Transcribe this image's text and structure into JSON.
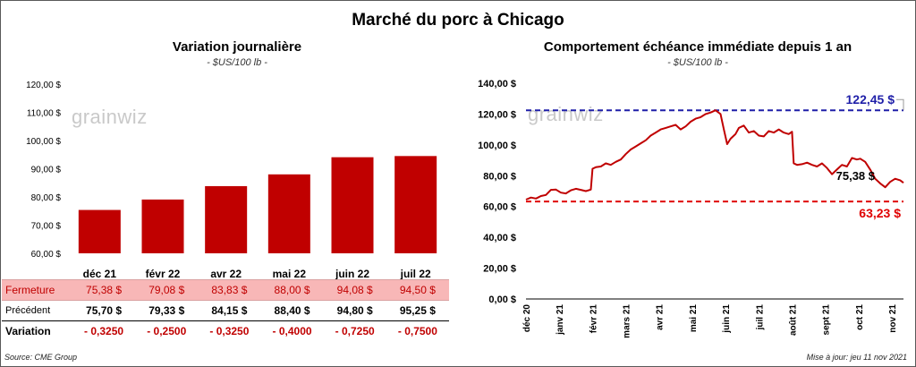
{
  "title": "Marché du porc à Chicago",
  "watermark": "grainwiz",
  "left_chart": {
    "title": "Variation journalière",
    "unit": "- $US/100 lb -"
  },
  "right_chart": {
    "title": "Comportement échéance immédiate depuis 1 an",
    "unit": "- $US/100 lb -"
  },
  "table": {
    "rows": [
      {
        "label": "Fermeture",
        "values": [
          "75,38 $",
          "79,08 $",
          "83,83 $",
          "88,00 $",
          "94,08 $",
          "94,50 $"
        ]
      },
      {
        "label": "Précédent",
        "values": [
          "75,70 $",
          "79,33 $",
          "84,15 $",
          "88,40 $",
          "94,80 $",
          "95,25 $"
        ]
      },
      {
        "label": "Variation",
        "values": [
          "- 0,3250",
          "- 0,2500",
          "- 0,3250",
          "- 0,4000",
          "- 0,7250",
          "- 0,7500"
        ]
      }
    ]
  },
  "footer": {
    "source": "Source: CME Group",
    "updated": "Mise à jour: jeu 11 nov 2021"
  },
  "colors": {
    "bar": "#c00000",
    "line": "#c00000",
    "high_line": "#1f1fa8",
    "low_line": "#e00000",
    "close_row_bg": "#f8b7b7"
  },
  "chart_data": [
    {
      "type": "bar",
      "title": "Variation journalière",
      "categories": [
        "déc 21",
        "févr 22",
        "avr 22",
        "mai 22",
        "juin 22",
        "juil 22"
      ],
      "values": [
        75.38,
        79.08,
        83.83,
        88.0,
        94.08,
        94.5
      ],
      "yticks": [
        "120,00 $",
        "110,00 $",
        "100,00 $",
        "90,00 $",
        "80,00 $",
        "70,00 $",
        "60,00 $"
      ],
      "ylim": [
        60,
        120
      ],
      "grid": false
    },
    {
      "type": "line",
      "title": "Comportement échéance immédiate depuis 1 an",
      "x_labels": [
        "déc 20",
        "janv 21",
        "févr 21",
        "mars 21",
        "avr 21",
        "mai 21",
        "juin 21",
        "juil 21",
        "août 21",
        "sept 21",
        "oct 21",
        "nov 21"
      ],
      "x_months": [
        0,
        1,
        2,
        3,
        4,
        5,
        6,
        7,
        8,
        9,
        10,
        11,
        11.35
      ],
      "series": [
        {
          "x": [
            0.0,
            0.15,
            0.3,
            0.45,
            0.6,
            0.75,
            0.9,
            1.05,
            1.2,
            1.35,
            1.5,
            1.65,
            1.8,
            1.95,
            2.0,
            2.1,
            2.25,
            2.4,
            2.55,
            2.7,
            2.85,
            3.0,
            3.15,
            3.3,
            3.45,
            3.6,
            3.75,
            3.9,
            4.05,
            4.2,
            4.35,
            4.5,
            4.65,
            4.8,
            4.95,
            5.1,
            5.25,
            5.4,
            5.55,
            5.7,
            5.85,
            5.95,
            6.05,
            6.15,
            6.25,
            6.3,
            6.4,
            6.55,
            6.7,
            6.85,
            7.0,
            7.15,
            7.3,
            7.45,
            7.6,
            7.75,
            7.9,
            8.0,
            8.05,
            8.15,
            8.3,
            8.45,
            8.6,
            8.75,
            8.9,
            9.05,
            9.2,
            9.35,
            9.5,
            9.65,
            9.8,
            9.95,
            10.05,
            10.2,
            10.35,
            10.5,
            10.65,
            10.8,
            10.95,
            11.1,
            11.25,
            11.35
          ],
          "y": [
            64.5,
            65.8,
            65.2,
            66.8,
            67.5,
            70.8,
            71.0,
            69.0,
            68.5,
            70.5,
            71.5,
            70.8,
            70.0,
            71.0,
            84.5,
            85.5,
            86.0,
            88.0,
            87.0,
            89.0,
            90.5,
            94.0,
            97.0,
            99.0,
            101.0,
            103.0,
            106.0,
            108.0,
            110.0,
            111.0,
            112.0,
            113.0,
            110.0,
            112.0,
            115.0,
            117.0,
            118.0,
            120.0,
            121.0,
            122.45,
            120.0,
            110.0,
            100.5,
            104.0,
            106.0,
            107.0,
            111.0,
            112.5,
            108.0,
            109.0,
            106.0,
            105.5,
            109.0,
            108.0,
            110.0,
            108.0,
            107.0,
            108.5,
            88.0,
            87.0,
            87.5,
            88.5,
            87.0,
            86.0,
            88.0,
            85.0,
            81.0,
            84.0,
            87.0,
            86.0,
            91.5,
            90.5,
            91.0,
            89.0,
            84.0,
            78.0,
            75.0,
            72.5,
            76.0,
            78.0,
            77.0,
            75.38
          ]
        }
      ],
      "reference_lines": [
        {
          "label": "122,45 $",
          "value": 122.45,
          "color": "#1f1fa8"
        },
        {
          "label": "63,23 $",
          "value": 63.23,
          "color": "#e00000"
        }
      ],
      "last_label": "75,38 $",
      "yticks": [
        "140,00 $",
        "120,00 $",
        "100,00 $",
        "80,00 $",
        "60,00 $",
        "40,00 $",
        "20,00 $",
        "0,00 $"
      ],
      "ylim": [
        0,
        140
      ],
      "grid": false
    }
  ]
}
